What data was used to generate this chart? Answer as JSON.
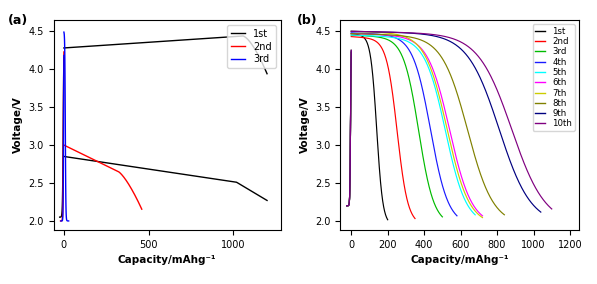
{
  "fig_width": 5.97,
  "fig_height": 2.84,
  "dpi": 100,
  "panel_a": {
    "label": "(a)",
    "xlabel": "Capacity/mAhg⁻¹",
    "ylabel": "Voltage/V",
    "xlim": [
      -60,
      1280
    ],
    "ylim": [
      1.88,
      4.65
    ],
    "xticks": [
      0,
      500,
      1000
    ],
    "yticks": [
      2.0,
      2.5,
      3.0,
      3.5,
      4.0,
      4.5
    ],
    "legend_labels": [
      "1st",
      "2nd",
      "3rd"
    ],
    "legend_colors": [
      "black",
      "red",
      "blue"
    ]
  },
  "panel_b": {
    "label": "(b)",
    "xlabel": "Capacity/mAhg⁻¹",
    "ylabel": "Voltage/V",
    "xlim": [
      -60,
      1250
    ],
    "ylim": [
      1.88,
      4.65
    ],
    "xticks": [
      0,
      200,
      400,
      600,
      800,
      1000,
      1200
    ],
    "yticks": [
      2.0,
      2.5,
      3.0,
      3.5,
      4.0,
      4.5
    ],
    "legend_labels": [
      "1st",
      "2nd",
      "3rd",
      "4th",
      "5th",
      "6th",
      "7th",
      "8th",
      "9th",
      "10th"
    ],
    "legend_colors": [
      "black",
      "red",
      "#00bb00",
      "#1a1aff",
      "cyan",
      "magenta",
      "#cccc00",
      "#808000",
      "#000080",
      "#800080"
    ]
  }
}
